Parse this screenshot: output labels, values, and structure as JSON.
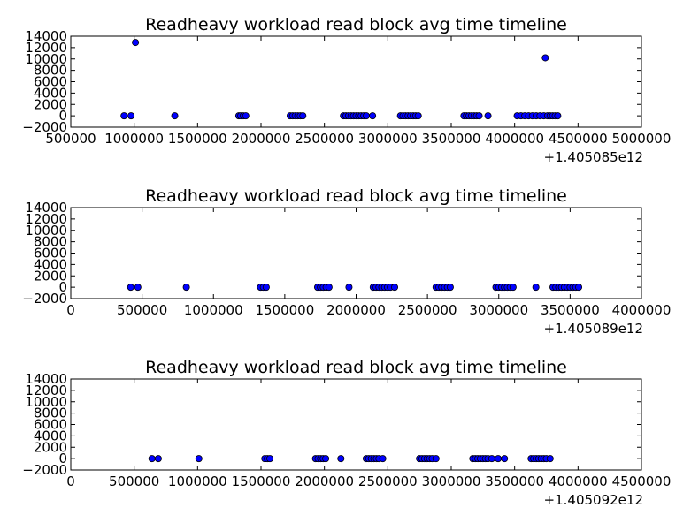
{
  "chart_data": [
    {
      "type": "scatter",
      "title": "Readheavy workload read block avg time timeline",
      "x_offset_label": "+1.405085e12",
      "xlim": [
        500000,
        5000000
      ],
      "ylim": [
        -2000,
        14000
      ],
      "x_ticks": [
        500000,
        1000000,
        1500000,
        2000000,
        2500000,
        3000000,
        3500000,
        4000000,
        4500000,
        5000000
      ],
      "x_tick_labels": [
        "500000",
        "1000000",
        "1500000",
        "2000000",
        "2500000",
        "3000000",
        "3500000",
        "4000000",
        "4500000",
        "5000000"
      ],
      "y_ticks": [
        -2000,
        0,
        2000,
        4000,
        6000,
        8000,
        10000,
        12000,
        14000
      ],
      "y_tick_labels": [
        "−2000",
        "0",
        "2000",
        "4000",
        "6000",
        "8000",
        "10000",
        "12000",
        "14000"
      ],
      "grid": false,
      "series": [
        {
          "x": [
            920000,
            975000,
            1010000,
            1320000,
            1825000,
            1840000,
            1860000,
            1880000,
            2230000,
            2250000,
            2270000,
            2290000,
            2310000,
            2330000,
            2650000,
            2670000,
            2690000,
            2710000,
            2730000,
            2750000,
            2770000,
            2790000,
            2810000,
            2830000,
            2880000,
            3100000,
            3120000,
            3140000,
            3160000,
            3180000,
            3200000,
            3220000,
            3240000,
            3600000,
            3620000,
            3640000,
            3660000,
            3680000,
            3700000,
            3720000,
            3790000,
            4020000,
            4050000,
            4080000,
            4110000,
            4140000,
            4170000,
            4200000,
            4230000,
            4242000,
            4260000,
            4280000,
            4300000,
            4320000,
            4340000
          ],
          "y": [
            0,
            0,
            12900,
            0,
            0,
            0,
            0,
            0,
            0,
            0,
            0,
            0,
            0,
            0,
            0,
            0,
            0,
            0,
            0,
            0,
            0,
            0,
            0,
            0,
            0,
            0,
            0,
            0,
            0,
            0,
            0,
            0,
            0,
            0,
            0,
            0,
            0,
            0,
            0,
            0,
            0,
            0,
            0,
            0,
            0,
            0,
            0,
            0,
            0,
            10200,
            0,
            0,
            0,
            0,
            0
          ]
        }
      ]
    },
    {
      "type": "scatter",
      "title": "Readheavy workload read block avg time timeline",
      "x_offset_label": "+1.405089e12",
      "xlim": [
        0,
        4000000
      ],
      "ylim": [
        -2000,
        14000
      ],
      "x_ticks": [
        0,
        500000,
        1000000,
        1500000,
        2000000,
        2500000,
        3000000,
        3500000,
        4000000
      ],
      "x_tick_labels": [
        "0",
        "500000",
        "1000000",
        "1500000",
        "2000000",
        "2500000",
        "3000000",
        "3500000",
        "4000000"
      ],
      "y_ticks": [
        -2000,
        0,
        2000,
        4000,
        6000,
        8000,
        10000,
        12000,
        14000
      ],
      "y_tick_labels": [
        "−2000",
        "0",
        "2000",
        "4000",
        "6000",
        "8000",
        "10000",
        "12000",
        "14000"
      ],
      "grid": false,
      "series": [
        {
          "x": [
            420000,
            470000,
            810000,
            1330000,
            1350000,
            1370000,
            1730000,
            1750000,
            1770000,
            1790000,
            1810000,
            1950000,
            2120000,
            2140000,
            2160000,
            2180000,
            2200000,
            2220000,
            2240000,
            2270000,
            2560000,
            2580000,
            2600000,
            2620000,
            2640000,
            2660000,
            2980000,
            3000000,
            3020000,
            3040000,
            3060000,
            3080000,
            3100000,
            3260000,
            3380000,
            3400000,
            3420000,
            3440000,
            3460000,
            3480000,
            3500000,
            3520000,
            3540000,
            3560000
          ],
          "y": [
            0,
            0,
            0,
            0,
            0,
            0,
            0,
            0,
            0,
            0,
            0,
            0,
            0,
            0,
            0,
            0,
            0,
            0,
            0,
            0,
            0,
            0,
            0,
            0,
            0,
            0,
            0,
            0,
            0,
            0,
            0,
            0,
            0,
            0,
            0,
            0,
            0,
            0,
            0,
            0,
            0,
            0,
            0,
            0
          ]
        }
      ]
    },
    {
      "type": "scatter",
      "title": "Readheavy workload read block avg time timeline",
      "x_offset_label": "+1.405092e12",
      "xlim": [
        0,
        4500000
      ],
      "ylim": [
        -2000,
        14000
      ],
      "x_ticks": [
        0,
        500000,
        1000000,
        1500000,
        2000000,
        2500000,
        3000000,
        3500000,
        4000000,
        4500000
      ],
      "x_tick_labels": [
        "0",
        "500000",
        "1000000",
        "1500000",
        "2000000",
        "2500000",
        "3000000",
        "3500000",
        "4000000",
        "4500000"
      ],
      "y_ticks": [
        -2000,
        0,
        2000,
        4000,
        6000,
        8000,
        10000,
        12000,
        14000
      ],
      "y_tick_labels": [
        "−2000",
        "0",
        "2000",
        "4000",
        "6000",
        "8000",
        "10000",
        "12000",
        "14000"
      ],
      "grid": false,
      "series": [
        {
          "x": [
            640000,
            690000,
            1010000,
            1530000,
            1550000,
            1570000,
            1930000,
            1950000,
            1970000,
            1990000,
            2010000,
            2130000,
            2330000,
            2350000,
            2370000,
            2390000,
            2410000,
            2430000,
            2460000,
            2750000,
            2770000,
            2790000,
            2810000,
            2830000,
            2850000,
            2880000,
            3170000,
            3190000,
            3210000,
            3230000,
            3250000,
            3270000,
            3290000,
            3320000,
            3370000,
            3420000,
            3630000,
            3650000,
            3670000,
            3690000,
            3710000,
            3730000,
            3750000,
            3780000
          ],
          "y": [
            0,
            0,
            0,
            0,
            0,
            0,
            0,
            0,
            0,
            0,
            0,
            0,
            0,
            0,
            0,
            0,
            0,
            0,
            0,
            0,
            0,
            0,
            0,
            0,
            0,
            0,
            0,
            0,
            0,
            0,
            0,
            0,
            0,
            0,
            0,
            0,
            0,
            0,
            0,
            0,
            0,
            0,
            0,
            0
          ]
        }
      ]
    }
  ],
  "colors": {
    "point_fill": "#0000ff",
    "point_edge": "#000000",
    "frame": "#000000",
    "background": "#ffffff"
  }
}
